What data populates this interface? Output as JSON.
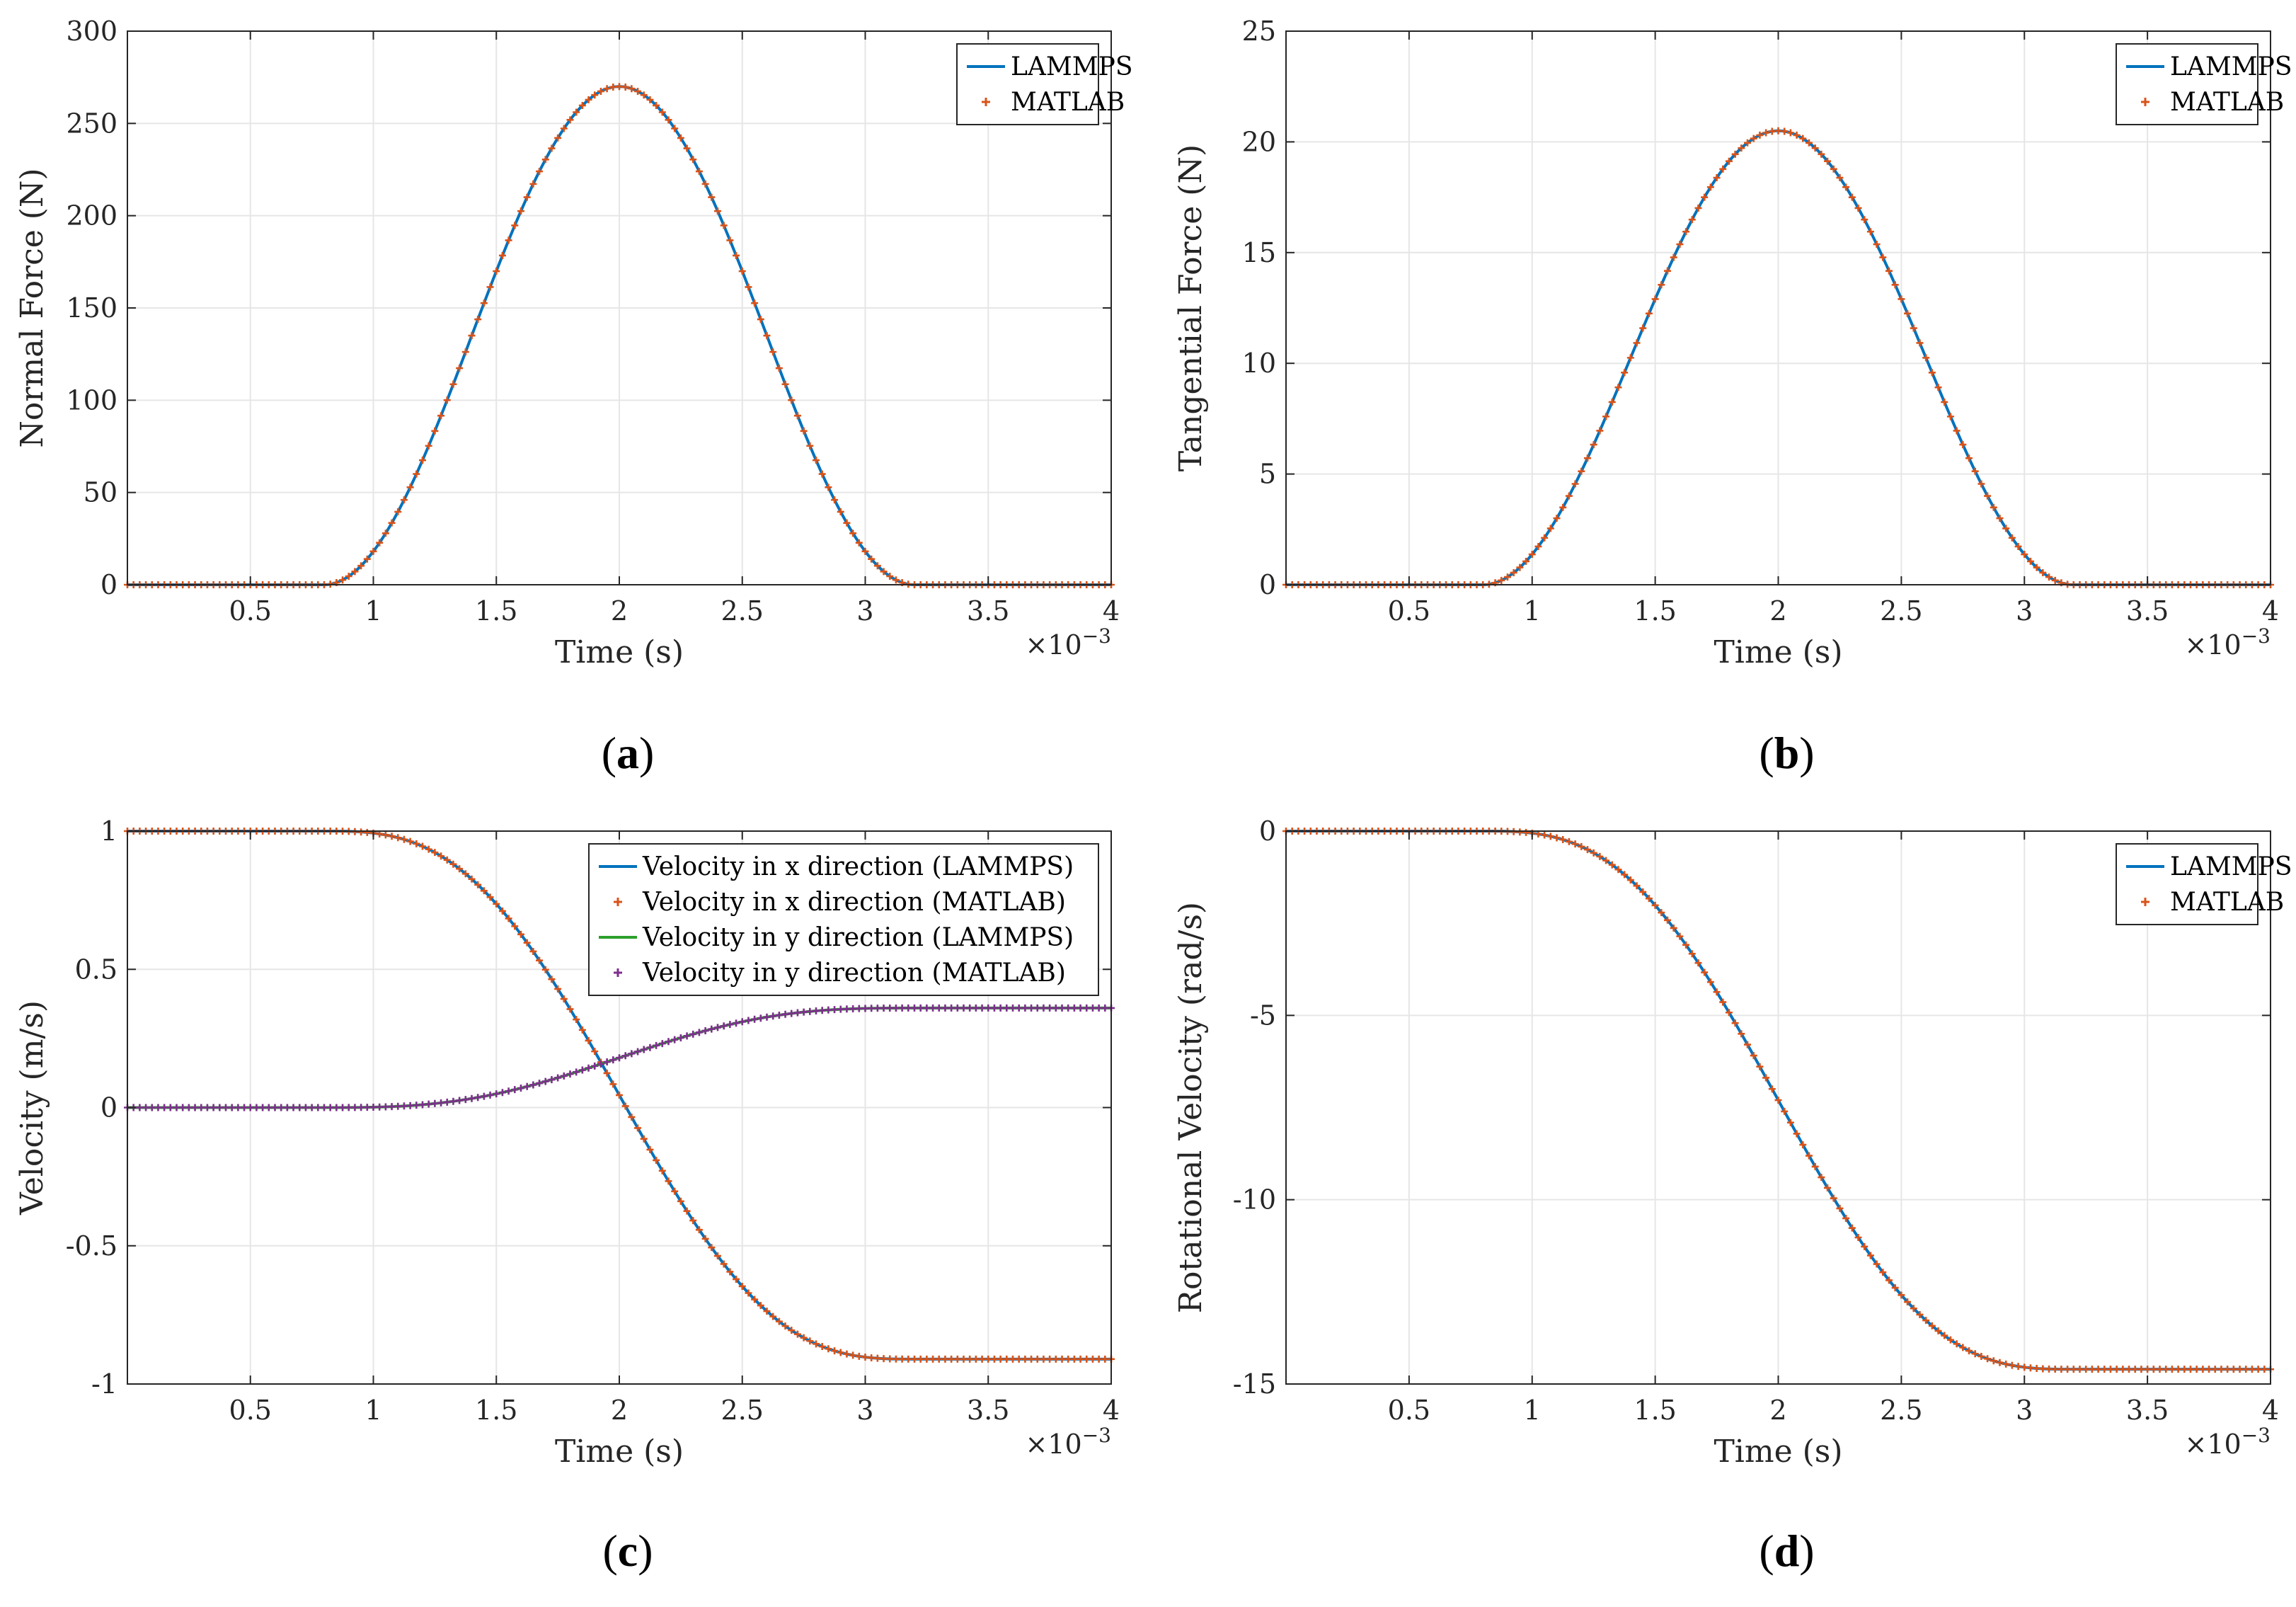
{
  "chart_data": [
    {
      "id": "a",
      "type": "line",
      "panel_label": "a",
      "xlabel": "Time (s)",
      "ylabel": "Normal Force (N)",
      "x_exponent": "×10",
      "x_exponent_power": "−3",
      "xlim": [
        0,
        4
      ],
      "ylim": [
        0,
        300
      ],
      "xticks": [
        0.5,
        1,
        1.5,
        2,
        2.5,
        3,
        3.5,
        4
      ],
      "xtick_labels": [
        "0.5",
        "1",
        "1.5",
        "2",
        "2.5",
        "3",
        "3.5",
        "4"
      ],
      "yticks": [
        0,
        50,
        100,
        150,
        200,
        250,
        300
      ],
      "ytick_labels": [
        "0",
        "50",
        "100",
        "150",
        "200",
        "250",
        "300"
      ],
      "grid": true,
      "legend_position": "top-right",
      "curve": {
        "kind": "pulse",
        "start": 0.8,
        "end": 3.2,
        "peak": 270
      },
      "series": [
        {
          "name": "LAMMPS",
          "style": "line",
          "color": "#0072BD",
          "curve_ref": "main"
        },
        {
          "name": "MATLAB",
          "style": "plus",
          "color": "#D95319",
          "curve_ref": "main"
        }
      ]
    },
    {
      "id": "b",
      "type": "line",
      "panel_label": "b",
      "xlabel": "Time (s)",
      "ylabel": "Tangential Force (N)",
      "x_exponent": "×10",
      "x_exponent_power": "−3",
      "xlim": [
        0,
        4
      ],
      "ylim": [
        0,
        25
      ],
      "xticks": [
        0.5,
        1,
        1.5,
        2,
        2.5,
        3,
        3.5,
        4
      ],
      "xtick_labels": [
        "0.5",
        "1",
        "1.5",
        "2",
        "2.5",
        "3",
        "3.5",
        "4"
      ],
      "yticks": [
        0,
        5,
        10,
        15,
        20,
        25
      ],
      "ytick_labels": [
        "0",
        "5",
        "10",
        "15",
        "20",
        "25"
      ],
      "grid": true,
      "legend_position": "top-right",
      "curve": {
        "kind": "pulse",
        "start": 0.8,
        "end": 3.2,
        "peak": 20.5
      },
      "series": [
        {
          "name": "LAMMPS",
          "style": "line",
          "color": "#0072BD",
          "curve_ref": "main"
        },
        {
          "name": "MATLAB",
          "style": "plus",
          "color": "#D95319",
          "curve_ref": "main"
        }
      ]
    },
    {
      "id": "c",
      "type": "line",
      "panel_label": "c",
      "xlabel": "Time (s)",
      "ylabel": "Velocity (m/s)",
      "x_exponent": "×10",
      "x_exponent_power": "−3",
      "xlim": [
        0,
        4
      ],
      "ylim": [
        -1,
        1
      ],
      "xticks": [
        0.5,
        1,
        1.5,
        2,
        2.5,
        3,
        3.5,
        4
      ],
      "xtick_labels": [
        "0.5",
        "1",
        "1.5",
        "2",
        "2.5",
        "3",
        "3.5",
        "4"
      ],
      "yticks": [
        -1,
        -0.5,
        0,
        0.5,
        1
      ],
      "ytick_labels": [
        "-1",
        "-0.5",
        "0",
        "0.5",
        "1"
      ],
      "grid": true,
      "legend_position": "top-right",
      "curves": {
        "vx": {
          "kind": "step",
          "start": 0.8,
          "end": 3.2,
          "from": 1.0,
          "to": -0.91
        },
        "vy": {
          "kind": "step",
          "start": 0.8,
          "end": 3.2,
          "from": 0.0,
          "to": 0.36
        }
      },
      "series": [
        {
          "name": "Velocity in x direction (LAMMPS)",
          "style": "line",
          "color": "#0072BD",
          "curve_ref": "vx"
        },
        {
          "name": "Velocity in x direction (MATLAB)",
          "style": "plus",
          "color": "#D95319",
          "curve_ref": "vx"
        },
        {
          "name": "Velocity in y direction (LAMMPS)",
          "style": "line",
          "color": "#2CA02C",
          "curve_ref": "vy"
        },
        {
          "name": "Velocity in y direction (MATLAB)",
          "style": "plus",
          "color": "#7E2F8E",
          "curve_ref": "vy"
        }
      ]
    },
    {
      "id": "d",
      "type": "line",
      "panel_label": "d",
      "xlabel": "Time (s)",
      "ylabel": "Rotational Velocity (rad/s)",
      "x_exponent": "×10",
      "x_exponent_power": "−3",
      "xlim": [
        0,
        4
      ],
      "ylim": [
        -15,
        0
      ],
      "xticks": [
        0.5,
        1,
        1.5,
        2,
        2.5,
        3,
        3.5,
        4
      ],
      "xtick_labels": [
        "0.5",
        "1",
        "1.5",
        "2",
        "2.5",
        "3",
        "3.5",
        "4"
      ],
      "yticks": [
        -15,
        -10,
        -5,
        0
      ],
      "ytick_labels": [
        "-15",
        "-10",
        "-5",
        "0"
      ],
      "grid": true,
      "legend_position": "top-right",
      "curve": {
        "kind": "step",
        "start": 0.8,
        "end": 3.2,
        "from": 0.0,
        "to": -14.6
      },
      "series": [
        {
          "name": "LAMMPS",
          "style": "line",
          "color": "#0072BD",
          "curve_ref": "main"
        },
        {
          "name": "MATLAB",
          "style": "plus",
          "color": "#D95319",
          "curve_ref": "main"
        }
      ]
    }
  ]
}
